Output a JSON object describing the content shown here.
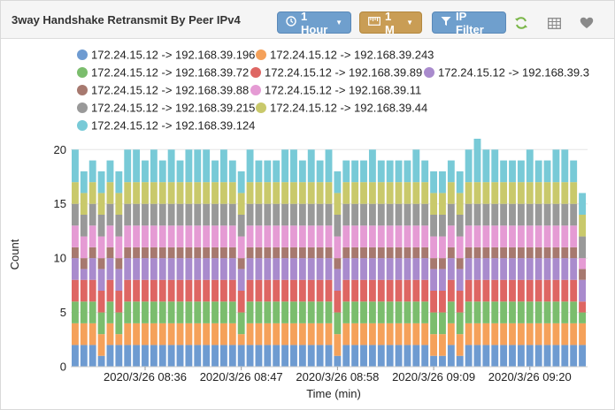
{
  "header": {
    "title": "3way Handshake Retransmit By Peer IPv4",
    "time_button": "1 Hour",
    "interval_button": "1 M",
    "filter_button": "IP Filter",
    "refresh_icon": "refresh-icon",
    "table_icon": "table-icon",
    "favorite_icon": "heart-icon"
  },
  "colors": {
    "accent_blue": "#6f9fcd",
    "accent_gold": "#c99d55",
    "refresh_green": "#7ab648"
  },
  "chart_data": {
    "type": "bar",
    "stacked": true,
    "title": "",
    "xlabel": "Time (min)",
    "ylabel": "Count",
    "ylim": [
      0,
      21
    ],
    "yticks": [
      0,
      5,
      10,
      15,
      20
    ],
    "grid": true,
    "legend_position": "top",
    "x_tick_labels": [
      {
        "label": "2020/3/26 08:36",
        "index": 8
      },
      {
        "label": "2020/3/26 08:47",
        "index": 19
      },
      {
        "label": "2020/3/26 08:58",
        "index": 30
      },
      {
        "label": "2020/3/26 09:09",
        "index": 41
      },
      {
        "label": "2020/3/26 09:20",
        "index": 52
      }
    ],
    "series": [
      {
        "name": "172.24.15.12 -> 192.168.39.196",
        "color": "#6e9bd1",
        "values": [
          2,
          2,
          2,
          1,
          2,
          2,
          2,
          2,
          2,
          2,
          2,
          2,
          2,
          2,
          2,
          2,
          2,
          2,
          2,
          2,
          2,
          2,
          2,
          2,
          2,
          2,
          2,
          2,
          2,
          2,
          1,
          2,
          2,
          2,
          2,
          2,
          2,
          2,
          2,
          2,
          2,
          1,
          1,
          2,
          1,
          2,
          2,
          2,
          2,
          2,
          2,
          2,
          2,
          2,
          2,
          2,
          2,
          2,
          2
        ]
      },
      {
        "name": "172.24.15.12 -> 192.168.39.243",
        "color": "#f5a15a",
        "values": [
          2,
          2,
          2,
          2,
          2,
          1,
          2,
          2,
          2,
          2,
          2,
          2,
          2,
          2,
          2,
          2,
          2,
          2,
          2,
          1,
          2,
          2,
          2,
          2,
          2,
          2,
          2,
          2,
          2,
          2,
          2,
          2,
          2,
          2,
          2,
          2,
          2,
          2,
          2,
          2,
          2,
          2,
          2,
          2,
          2,
          2,
          2,
          2,
          2,
          2,
          2,
          2,
          2,
          2,
          2,
          2,
          2,
          2,
          2
        ]
      },
      {
        "name": "172.24.15.12 -> 192.168.39.72",
        "color": "#7bbd6d",
        "values": [
          2,
          2,
          2,
          2,
          2,
          2,
          2,
          2,
          2,
          2,
          2,
          2,
          2,
          2,
          2,
          2,
          2,
          2,
          2,
          2,
          2,
          2,
          2,
          2,
          2,
          2,
          2,
          2,
          2,
          2,
          2,
          2,
          2,
          2,
          2,
          2,
          2,
          2,
          2,
          2,
          2,
          2,
          2,
          2,
          2,
          2,
          2,
          2,
          2,
          2,
          2,
          2,
          2,
          2,
          2,
          2,
          2,
          2,
          1
        ]
      },
      {
        "name": "172.24.15.12 -> 192.168.39.89",
        "color": "#de6663",
        "values": [
          2,
          2,
          2,
          2,
          2,
          2,
          2,
          2,
          2,
          2,
          2,
          2,
          2,
          2,
          2,
          2,
          2,
          2,
          2,
          2,
          2,
          2,
          2,
          2,
          2,
          2,
          2,
          2,
          2,
          2,
          2,
          2,
          2,
          2,
          2,
          2,
          2,
          2,
          2,
          2,
          2,
          2,
          2,
          2,
          2,
          2,
          2,
          2,
          2,
          2,
          2,
          2,
          2,
          2,
          2,
          2,
          2,
          2,
          1
        ]
      },
      {
        "name": "172.24.15.12 -> 192.168.39.3",
        "color": "#a98bcd",
        "values": [
          2,
          1,
          2,
          2,
          2,
          2,
          2,
          2,
          2,
          2,
          2,
          2,
          2,
          2,
          2,
          2,
          2,
          2,
          2,
          2,
          2,
          2,
          2,
          2,
          2,
          2,
          2,
          2,
          2,
          2,
          2,
          2,
          2,
          2,
          2,
          2,
          2,
          2,
          2,
          2,
          2,
          2,
          2,
          2,
          2,
          2,
          2,
          2,
          2,
          2,
          2,
          2,
          2,
          2,
          2,
          2,
          2,
          2,
          2
        ]
      },
      {
        "name": "172.24.15.12 -> 192.168.39.88",
        "color": "#a7796f",
        "values": [
          1,
          1,
          1,
          1,
          1,
          1,
          1,
          1,
          1,
          1,
          1,
          1,
          1,
          1,
          1,
          1,
          1,
          1,
          1,
          1,
          1,
          1,
          1,
          1,
          1,
          1,
          1,
          1,
          1,
          1,
          1,
          1,
          1,
          1,
          1,
          1,
          1,
          1,
          1,
          1,
          1,
          1,
          1,
          1,
          1,
          1,
          1,
          1,
          1,
          1,
          1,
          1,
          1,
          1,
          1,
          1,
          1,
          1,
          1
        ]
      },
      {
        "name": "172.24.15.12 -> 192.168.39.11",
        "color": "#e59bd4",
        "values": [
          2,
          2,
          2,
          2,
          2,
          2,
          2,
          2,
          2,
          2,
          2,
          2,
          2,
          2,
          2,
          2,
          2,
          2,
          2,
          2,
          2,
          2,
          2,
          2,
          2,
          2,
          2,
          2,
          2,
          2,
          2,
          2,
          2,
          2,
          2,
          2,
          2,
          2,
          2,
          2,
          2,
          2,
          2,
          2,
          2,
          2,
          2,
          2,
          2,
          2,
          2,
          2,
          2,
          2,
          2,
          2,
          2,
          2,
          1
        ]
      },
      {
        "name": "172.24.15.12 -> 192.168.39.215",
        "color": "#999999",
        "values": [
          2,
          2,
          2,
          2,
          2,
          2,
          2,
          2,
          2,
          2,
          2,
          2,
          2,
          2,
          2,
          2,
          2,
          2,
          2,
          2,
          2,
          2,
          2,
          2,
          2,
          2,
          2,
          2,
          2,
          2,
          2,
          2,
          2,
          2,
          2,
          2,
          2,
          2,
          2,
          2,
          2,
          2,
          2,
          2,
          2,
          2,
          2,
          2,
          2,
          2,
          2,
          2,
          2,
          2,
          2,
          2,
          2,
          2,
          2
        ]
      },
      {
        "name": "172.24.15.12 -> 192.168.39.44",
        "color": "#c9c96b",
        "values": [
          2,
          2,
          2,
          2,
          2,
          2,
          2,
          2,
          2,
          2,
          2,
          2,
          2,
          2,
          2,
          2,
          2,
          2,
          2,
          2,
          2,
          2,
          2,
          2,
          2,
          2,
          2,
          2,
          2,
          2,
          2,
          2,
          2,
          2,
          2,
          2,
          2,
          2,
          2,
          2,
          2,
          2,
          2,
          2,
          2,
          2,
          2,
          2,
          2,
          2,
          2,
          2,
          2,
          2,
          2,
          2,
          2,
          2,
          2
        ]
      },
      {
        "name": "172.24.15.12 -> 192.168.39.124",
        "color": "#78cad7",
        "values": [
          3,
          2,
          2,
          2,
          2,
          2,
          3,
          3,
          2,
          3,
          2,
          3,
          2,
          3,
          3,
          3,
          2,
          3,
          2,
          2,
          3,
          2,
          2,
          2,
          3,
          3,
          2,
          3,
          2,
          3,
          2,
          2,
          2,
          2,
          3,
          2,
          2,
          2,
          2,
          3,
          2,
          2,
          2,
          2,
          2,
          3,
          4,
          3,
          3,
          2,
          2,
          2,
          3,
          2,
          2,
          3,
          3,
          2,
          2
        ]
      }
    ]
  }
}
